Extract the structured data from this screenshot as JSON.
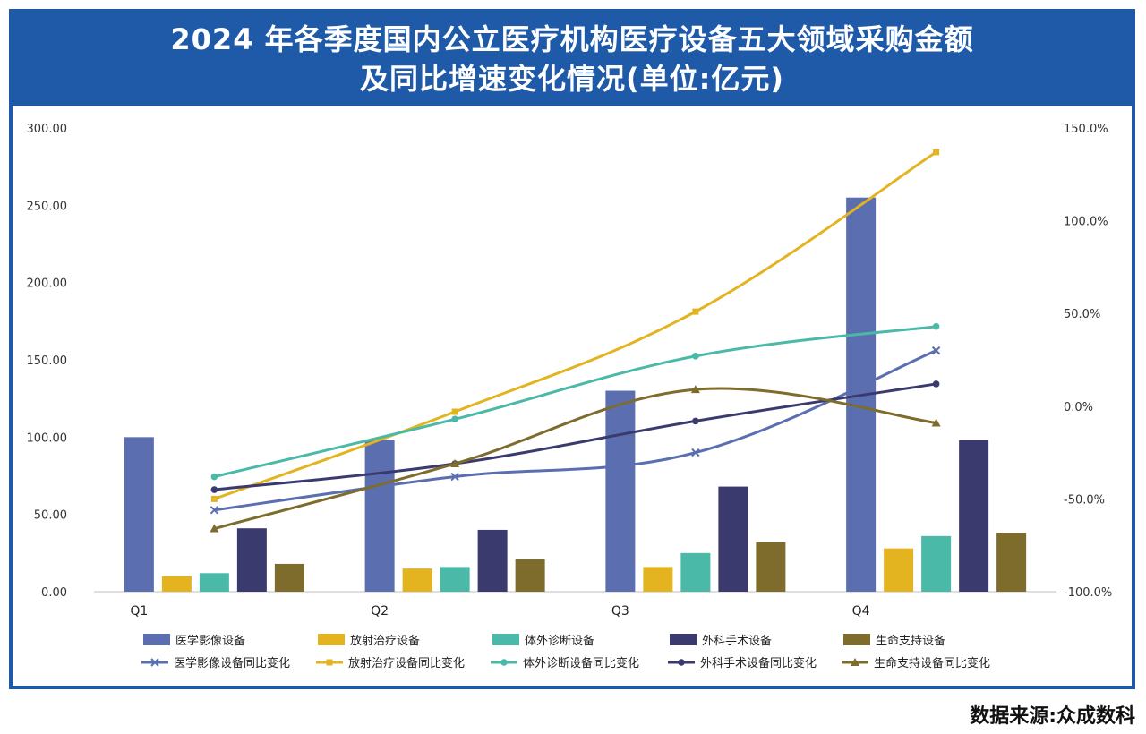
{
  "title_line1": "2024 年各季度国内公立医疗机构医疗设备五大领域采购金额",
  "title_line2": "及同比增速变化情况(单位:亿元)",
  "source": "数据来源:众成数科",
  "chart_data": {
    "type": "bar",
    "categories": [
      "Q1",
      "Q2",
      "Q3",
      "Q4"
    ],
    "left_axis": {
      "min": 0,
      "max": 300,
      "ticks": [
        "0.00",
        "50.00",
        "100.00",
        "150.00",
        "200.00",
        "250.00",
        "300.00"
      ]
    },
    "right_axis": {
      "min": -100,
      "max": 150,
      "ticks": [
        "-100.0%",
        "-50.0%",
        "0.0%",
        "50.0%",
        "100.0%",
        "150.0%"
      ]
    },
    "bar_series": [
      {
        "name": "医学影像设备",
        "color": "#5b6fb0",
        "values": [
          100,
          98,
          130,
          255
        ]
      },
      {
        "name": "放射治疗设备",
        "color": "#e3b420",
        "values": [
          10,
          15,
          16,
          28
        ]
      },
      {
        "name": "体外诊断设备",
        "color": "#4bb9a8",
        "values": [
          12,
          16,
          25,
          36
        ]
      },
      {
        "name": "外科手术设备",
        "color": "#3b3a6e",
        "values": [
          41,
          40,
          68,
          98
        ]
      },
      {
        "name": "生命支持设备",
        "color": "#7d6c2c",
        "values": [
          18,
          21,
          32,
          38
        ]
      }
    ],
    "line_series": [
      {
        "name": "医学影像设备同比变化",
        "color": "#5b6fb0",
        "marker": "x",
        "values": [
          -56,
          -38,
          -25,
          30
        ]
      },
      {
        "name": "放射治疗设备同比变化",
        "color": "#e3b420",
        "marker": "square",
        "values": [
          -50,
          -3,
          51,
          137
        ]
      },
      {
        "name": "体外诊断设备同比变化",
        "color": "#4bb9a8",
        "marker": "circle",
        "values": [
          -38,
          -7,
          27,
          43
        ]
      },
      {
        "name": "外科手术设备同比变化",
        "color": "#3b3a6e",
        "marker": "circle",
        "values": [
          -45,
          -31,
          -8,
          12
        ]
      },
      {
        "name": "生命支持设备同比变化",
        "color": "#7d6c2c",
        "marker": "triangle",
        "values": [
          -66,
          -31,
          9,
          -9
        ]
      }
    ],
    "legend_position": "bottom",
    "grid": false
  }
}
